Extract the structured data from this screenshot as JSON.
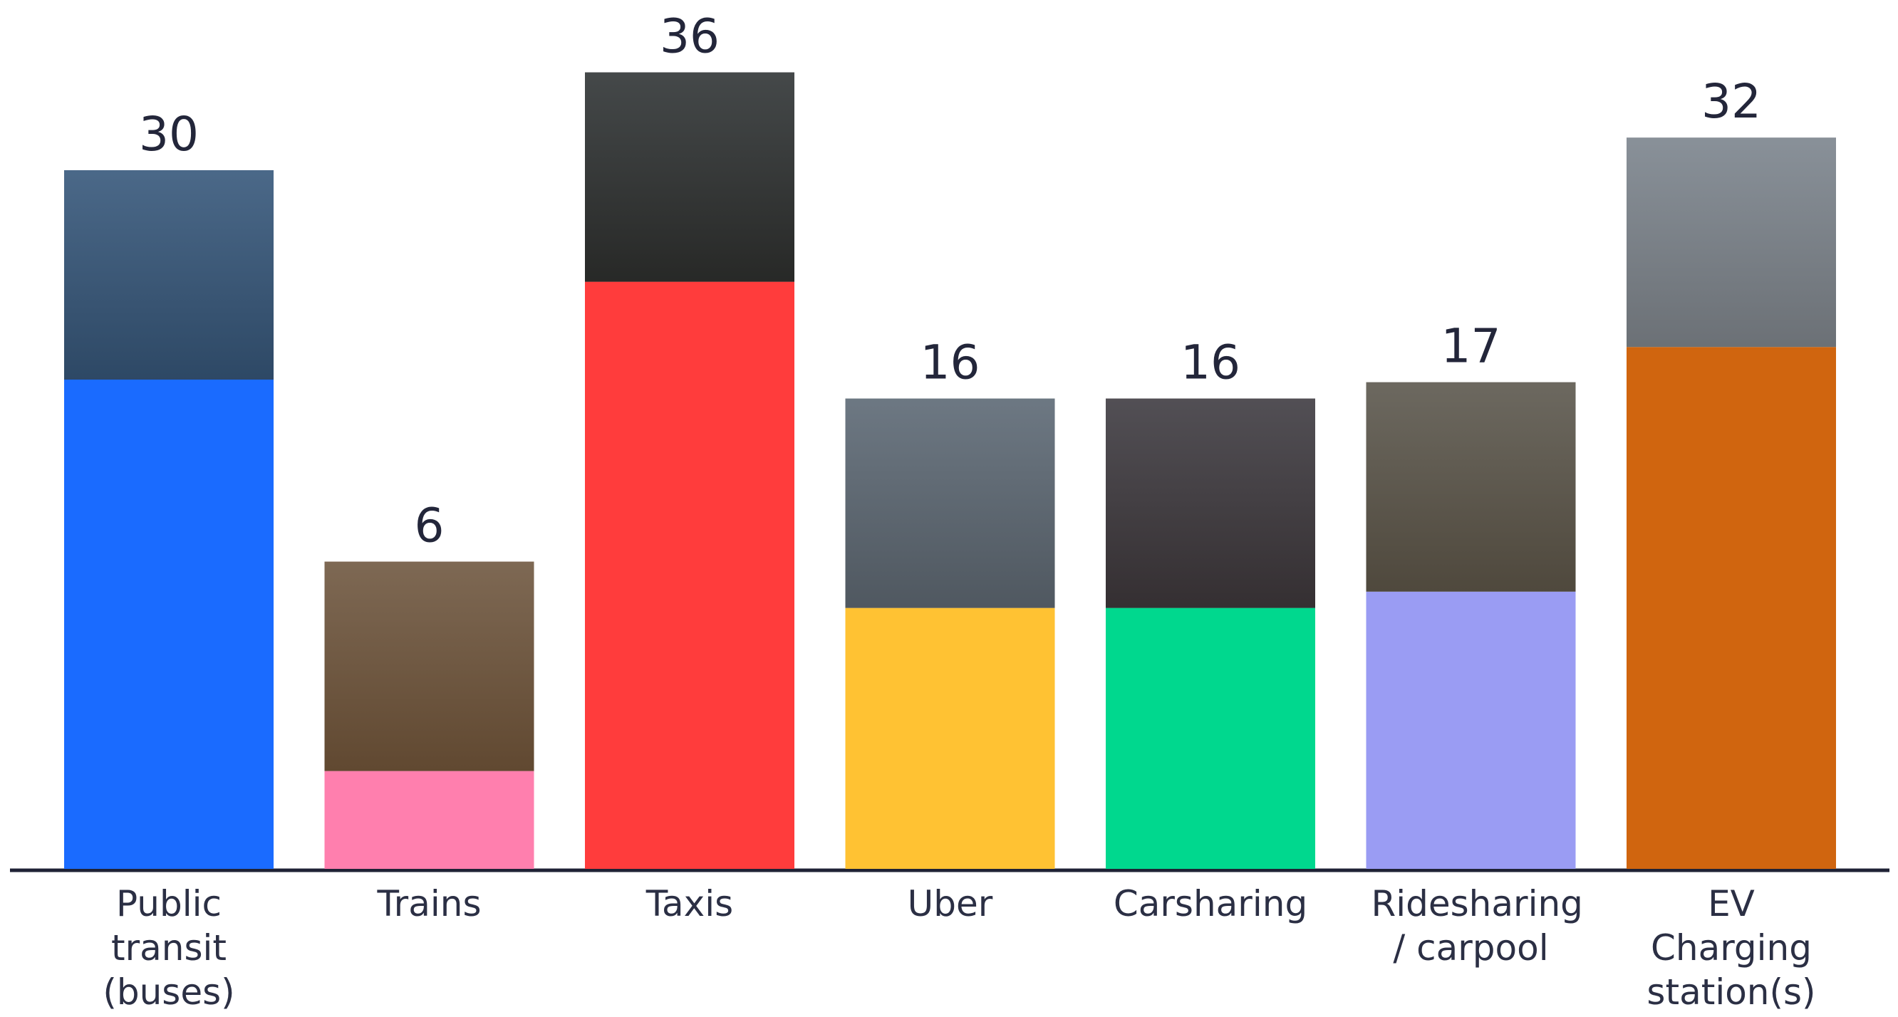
{
  "chart_data": {
    "type": "bar",
    "categories": [
      "Public transit (buses)",
      "Trains",
      "Taxis",
      "Uber",
      "Carsharing",
      "Ridesharing / carpool",
      "EV Charging station(s)"
    ],
    "values": [
      30,
      6,
      36,
      16,
      16,
      17,
      32
    ],
    "colors": [
      "#1a6bff",
      "#ff7fae",
      "#ff3c3c",
      "#ffc233",
      "#00d88e",
      "#9a9cf3",
      "#d0650f"
    ]
  }
}
